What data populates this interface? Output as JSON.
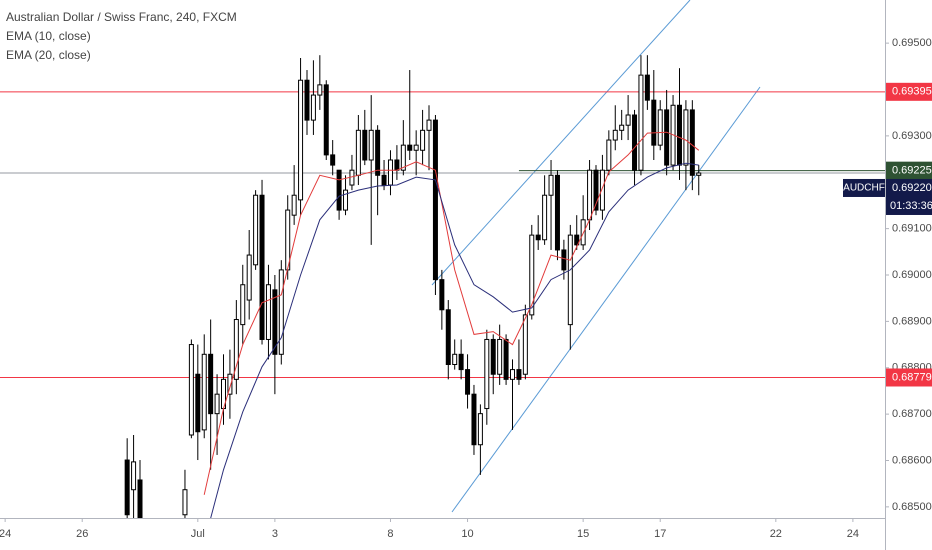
{
  "chart_data": {
    "type": "candlestick",
    "title": "Australian Dollar / Swiss Franc, 240, FXCM",
    "xlim": [
      -0.8,
      137
    ],
    "xticks": [
      {
        "value": 0,
        "label": "24"
      },
      {
        "value": 12,
        "label": "26"
      },
      {
        "value": 30,
        "label": "Jul"
      },
      {
        "value": 42,
        "label": "3"
      },
      {
        "value": 60,
        "label": "8"
      },
      {
        "value": 72,
        "label": "10"
      },
      {
        "value": 90,
        "label": "15"
      },
      {
        "value": 102,
        "label": "17"
      },
      {
        "value": 120,
        "label": "22"
      },
      {
        "value": 132,
        "label": "24"
      }
    ],
    "ylim": [
      0.68476,
      0.69593
    ],
    "yticks": [
      {
        "value": 0.695,
        "label": "0.69500"
      },
      {
        "value": 0.693,
        "label": "0.69300"
      },
      {
        "value": 0.691,
        "label": "0.69100"
      },
      {
        "value": 0.69,
        "label": "0.69000"
      },
      {
        "value": 0.689,
        "label": "0.68900"
      },
      {
        "value": 0.688,
        "label": "0.68800"
      },
      {
        "value": 0.687,
        "label": "0.68700"
      },
      {
        "value": 0.686,
        "label": "0.68600"
      },
      {
        "value": 0.685,
        "label": "0.68500"
      }
    ],
    "candles": {
      "up_color": "#ffffff",
      "down_color": "#000000",
      "wick_color": "#000000",
      "x": [
        19,
        20,
        21,
        28,
        29,
        30,
        31,
        32,
        33,
        34,
        35,
        36,
        37,
        38,
        39,
        40,
        41,
        42,
        43,
        44,
        45,
        46,
        47,
        48,
        49,
        50,
        51,
        52,
        53,
        54,
        55,
        56,
        57,
        58,
        59,
        60,
        61,
        62,
        63,
        64,
        65,
        66,
        67,
        68,
        69,
        70,
        71,
        72,
        73,
        74,
        75,
        76,
        77,
        78,
        79,
        80,
        81,
        82,
        83,
        84,
        85,
        86,
        87,
        88,
        89,
        90,
        91,
        92,
        93,
        94,
        95,
        96,
        97,
        98,
        99,
        100,
        101,
        102,
        103,
        104,
        105,
        106,
        107,
        108
      ],
      "open": [
        0.68601,
        0.68537,
        0.68558,
        0.68483,
        0.68655,
        0.68786,
        0.68666,
        0.68829,
        0.68701,
        0.68712,
        0.68743,
        0.68775,
        0.68893,
        0.68946,
        0.69022,
        0.69172,
        0.68861,
        0.68968,
        0.68829,
        0.69011,
        0.69129,
        0.69162,
        0.6942,
        0.69334,
        0.69388,
        0.6941,
        0.69259,
        0.69226,
        0.6914,
        0.69194,
        0.69215,
        0.69312,
        0.69248,
        0.69312,
        0.69215,
        0.69194,
        0.69248,
        0.69226,
        0.6928,
        0.69269,
        0.69269,
        0.69312,
        0.69334,
        0.6899,
        0.68925,
        0.68807,
        0.68829,
        0.68796,
        0.68743,
        0.68634,
        0.68712,
        0.68861,
        0.68786,
        0.68861,
        0.68775,
        0.68796,
        0.68786,
        0.68914,
        0.69086,
        0.69076,
        0.69172,
        0.69215,
        0.69054,
        0.68893,
        0.69086,
        0.69065,
        0.69119,
        0.69226,
        0.6914,
        0.69226,
        0.69291,
        0.69312,
        0.69323,
        0.69345,
        0.69226,
        0.69431,
        0.69377,
        0.6928,
        0.69356,
        0.69237,
        0.69366,
        0.69237,
        0.69356,
        0.69215
      ],
      "high": [
        0.68648,
        0.68655,
        0.68601,
        0.6858,
        0.68861,
        0.6885,
        0.68872,
        0.68904,
        0.68786,
        0.68829,
        0.68839,
        0.68946,
        0.69022,
        0.69097,
        0.69183,
        0.69205,
        0.69022,
        0.69,
        0.69032,
        0.69172,
        0.69237,
        0.69468,
        0.69442,
        0.69463,
        0.69474,
        0.6942,
        0.69291,
        0.69226,
        0.69215,
        0.69259,
        0.69345,
        0.69356,
        0.69388,
        0.69323,
        0.69248,
        0.69269,
        0.6928,
        0.69334,
        0.69442,
        0.69312,
        0.69356,
        0.69366,
        0.69345,
        0.69011,
        0.68946,
        0.68861,
        0.68861,
        0.68829,
        0.68763,
        0.68721,
        0.68882,
        0.68872,
        0.68893,
        0.68872,
        0.68818,
        0.68861,
        0.68936,
        0.69108,
        0.69129,
        0.69215,
        0.69248,
        0.69226,
        0.69076,
        0.69108,
        0.69129,
        0.69172,
        0.69248,
        0.69237,
        0.69259,
        0.69312,
        0.69366,
        0.69356,
        0.69388,
        0.69356,
        0.69474,
        0.69474,
        0.69442,
        0.69377,
        0.69399,
        0.69388,
        0.69446,
        0.69377,
        0.69377,
        0.69237
      ],
      "low": [
        0.68472,
        0.68472,
        0.68462,
        0.68472,
        0.68648,
        0.68601,
        0.68648,
        0.6858,
        0.68612,
        0.68677,
        0.6869,
        0.68743,
        0.6885,
        0.68904,
        0.69011,
        0.6885,
        0.68818,
        0.68743,
        0.68807,
        0.6899,
        0.69108,
        0.69129,
        0.69302,
        0.69302,
        0.69356,
        0.69248,
        0.69215,
        0.69119,
        0.69129,
        0.69183,
        0.69194,
        0.69237,
        0.69065,
        0.69129,
        0.69183,
        0.69172,
        0.69205,
        0.69215,
        0.69248,
        0.69215,
        0.69237,
        0.69226,
        0.68957,
        0.68882,
        0.68775,
        0.68796,
        0.68775,
        0.68712,
        0.68612,
        0.68569,
        0.68677,
        0.68743,
        0.68763,
        0.68763,
        0.68666,
        0.68763,
        0.68775,
        0.68904,
        0.69054,
        0.69065,
        0.69054,
        0.69032,
        0.6899,
        0.68839,
        0.69054,
        0.69054,
        0.69097,
        0.69129,
        0.69119,
        0.69215,
        0.69269,
        0.69291,
        0.69291,
        0.69194,
        0.69215,
        0.69356,
        0.69248,
        0.69269,
        0.69215,
        0.69226,
        0.69205,
        0.69183,
        0.69183,
        0.69172
      ],
      "close": [
        0.68483,
        0.68597,
        0.68472,
        0.68537,
        0.6885,
        0.68662,
        0.68829,
        0.68701,
        0.68743,
        0.68775,
        0.68786,
        0.68904,
        0.68979,
        0.69043,
        0.69172,
        0.68861,
        0.68979,
        0.68829,
        0.69011,
        0.6914,
        0.69172,
        0.6942,
        0.69334,
        0.69388,
        0.6941,
        0.69259,
        0.69237,
        0.6914,
        0.69183,
        0.69226,
        0.69312,
        0.69248,
        0.69312,
        0.69215,
        0.69194,
        0.69248,
        0.69226,
        0.6928,
        0.69269,
        0.6928,
        0.69312,
        0.69334,
        0.6899,
        0.68925,
        0.68807,
        0.68829,
        0.68796,
        0.68743,
        0.68634,
        0.68701,
        0.68861,
        0.68786,
        0.68861,
        0.68775,
        0.68796,
        0.68775,
        0.68914,
        0.69086,
        0.69076,
        0.69172,
        0.69215,
        0.69054,
        0.69011,
        0.69086,
        0.69065,
        0.69119,
        0.69226,
        0.6914,
        0.69226,
        0.69291,
        0.69312,
        0.69323,
        0.69345,
        0.69226,
        0.69431,
        0.69377,
        0.6928,
        0.69356,
        0.69237,
        0.69366,
        0.69237,
        0.69356,
        0.69215,
        0.6922
      ]
    },
    "series": [
      {
        "name": "EMA (10, close)",
        "color": "#e23b3b",
        "x": [
          31,
          34,
          37,
          40,
          43,
          46,
          49,
          52,
          55,
          58,
          61,
          64,
          67,
          70,
          73,
          76,
          79,
          82,
          85,
          88,
          91,
          94,
          97,
          100,
          103,
          106,
          108
        ],
        "values": [
          0.68526,
          0.68712,
          0.6885,
          0.6894,
          0.68957,
          0.69129,
          0.69215,
          0.69205,
          0.69215,
          0.69226,
          0.69226,
          0.69244,
          0.69226,
          0.69011,
          0.68872,
          0.68878,
          0.6885,
          0.68936,
          0.69043,
          0.69032,
          0.69119,
          0.69222,
          0.69259,
          0.69306,
          0.69308,
          0.69291,
          0.69269
        ]
      },
      {
        "name": "EMA (20, close)",
        "color": "#2b2f7a",
        "x": [
          32,
          34,
          37,
          40,
          43,
          46,
          49,
          52,
          55,
          58,
          61,
          64,
          67,
          70,
          73,
          76,
          79,
          82,
          85,
          88,
          91,
          94,
          97,
          100,
          103,
          106,
          108
        ],
        "values": [
          0.68476,
          0.6858,
          0.68705,
          0.68802,
          0.68865,
          0.69,
          0.69119,
          0.6917,
          0.69183,
          0.69192,
          0.69194,
          0.69211,
          0.69205,
          0.69065,
          0.68979,
          0.68953,
          0.6892,
          0.68929,
          0.6899,
          0.69011,
          0.69054,
          0.69136,
          0.69183,
          0.69211,
          0.69231,
          0.69241,
          0.69237
        ]
      }
    ],
    "hlines": [
      {
        "value": 0.69395,
        "color": "#f23645"
      },
      {
        "value": 0.68779,
        "color": "#f23645"
      },
      {
        "value": 0.69225,
        "color": "#2e5233",
        "x_start": 80
      }
    ],
    "last_price": {
      "symbol": "AUDCHF",
      "value": 0.6922,
      "label": "0.69220",
      "countdown": "01:33:36",
      "color": "#131a4a"
    }
  }
}
